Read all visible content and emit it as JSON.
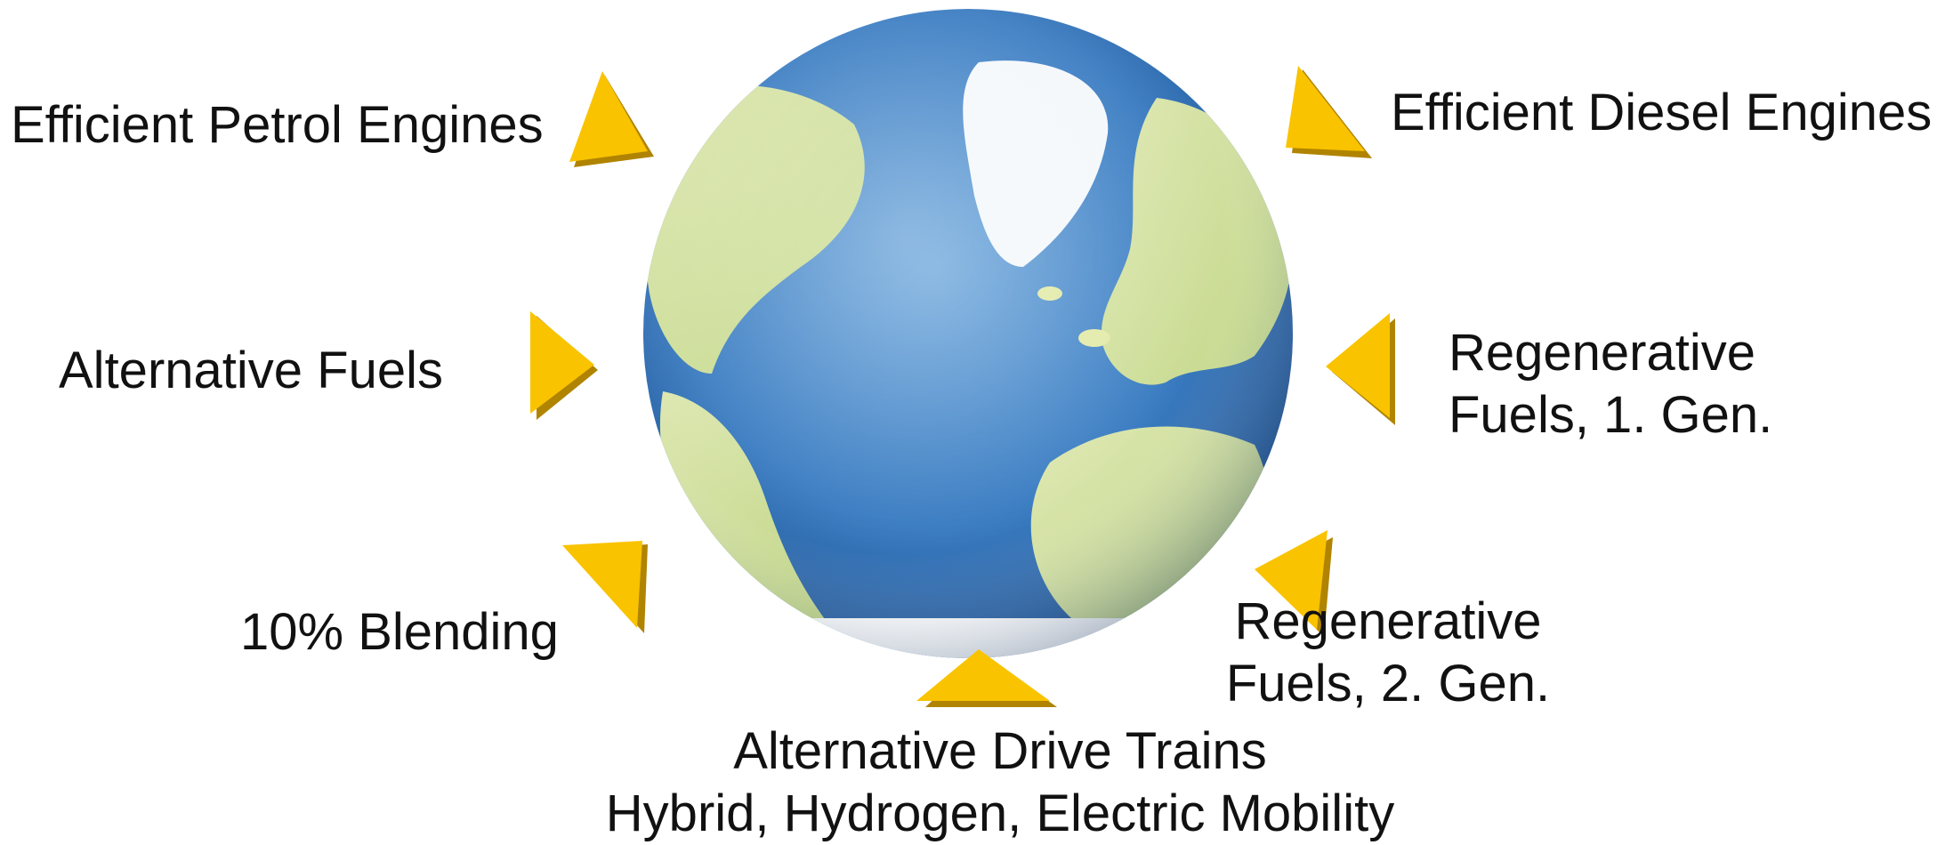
{
  "labels": {
    "efficient_petrol": "Efficient Petrol Engines",
    "efficient_diesel": "Efficient Diesel Engines",
    "alternative_fuels": "Alternative Fuels",
    "regen_1_line1": "Regenerative",
    "regen_1_line2": "Fuels, 1. Gen.",
    "blending": "10% Blending",
    "regen_2_line1": "Regenerative",
    "regen_2_line2": "Fuels, 2. Gen.",
    "drive_trains_line1": "Alternative Drive Trains",
    "drive_trains_line2": "Hybrid, Hydrogen, Electric Mobility"
  },
  "colors": {
    "arrow_fill": "#F9C300",
    "arrow_shade": "#B08400",
    "ocean": "#2F6FB5",
    "land": "#D8E59A",
    "ice": "#F4F8FB"
  },
  "icons": {
    "center": "earth-globe-icon",
    "pointer": "triangle-arrow-icon"
  }
}
